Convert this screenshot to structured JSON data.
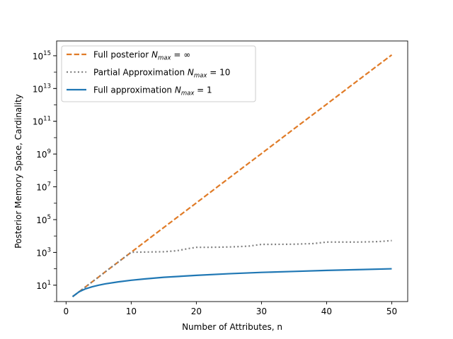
{
  "chart_data": {
    "type": "line",
    "title": "",
    "xlabel": "Number of Attributes, n",
    "ylabel": "Posterior Memory Space, Cardinality",
    "xlim": [
      -1.45,
      52.45
    ],
    "ylim_log10": [
      0.0,
      15.9
    ],
    "yscale": "log",
    "x_ticks": [
      0,
      10,
      20,
      30,
      40,
      50
    ],
    "y_ticks": [
      {
        "exp": 1,
        "base": "10",
        "sup": "1"
      },
      {
        "exp": 3,
        "base": "10",
        "sup": "3"
      },
      {
        "exp": 5,
        "base": "10",
        "sup": "5"
      },
      {
        "exp": 7,
        "base": "10",
        "sup": "7"
      },
      {
        "exp": 9,
        "base": "10",
        "sup": "9"
      },
      {
        "exp": 11,
        "base": "10",
        "sup": "11"
      },
      {
        "exp": 13,
        "base": "10",
        "sup": "13"
      },
      {
        "exp": 15,
        "base": "10",
        "sup": "15"
      }
    ],
    "grid": false,
    "legend_position": "top-left",
    "series": [
      {
        "name": "Full posterior N_max = ∞",
        "legend": {
          "main": "Full posterior ",
          "sym": "N",
          "sub": "max",
          "eq": " = ∞"
        },
        "color": "#e07b27",
        "dash": "dashed",
        "x": [
          1,
          2,
          3,
          4,
          5,
          6,
          7,
          8,
          9,
          10,
          15,
          20,
          25,
          30,
          35,
          40,
          45,
          50
        ],
        "y_log10": [
          0.3,
          0.6,
          0.9,
          1.2,
          1.5,
          1.81,
          2.11,
          2.41,
          2.71,
          3.01,
          4.52,
          6.02,
          7.53,
          9.03,
          10.54,
          12.04,
          13.55,
          15.05
        ]
      },
      {
        "name": "Partial Approximation N_max = 10",
        "legend": {
          "main": "Partial Approximation ",
          "sym": "N",
          "sub": "max",
          "eq": " = 10"
        },
        "color": "#808080",
        "dash": "dotted",
        "x": [
          1,
          2,
          3,
          4,
          5,
          6,
          7,
          8,
          9,
          10,
          12,
          15,
          17,
          19,
          20,
          22,
          25,
          28,
          30,
          32,
          35,
          38,
          40,
          42,
          45,
          48,
          50
        ],
        "y_log10": [
          0.3,
          0.6,
          0.9,
          1.2,
          1.5,
          1.81,
          2.11,
          2.41,
          2.71,
          3.01,
          3.02,
          3.04,
          3.1,
          3.25,
          3.31,
          3.31,
          3.33,
          3.38,
          3.49,
          3.49,
          3.5,
          3.54,
          3.63,
          3.63,
          3.63,
          3.66,
          3.72
        ]
      },
      {
        "name": "Full approximation N_max = 1",
        "legend": {
          "main": "Full approximation ",
          "sym": "N",
          "sub": "max",
          "eq": " = 1"
        },
        "color": "#1f77b4",
        "dash": "solid",
        "x": [
          1,
          2,
          3,
          4,
          5,
          6,
          8,
          10,
          12,
          15,
          20,
          25,
          30,
          35,
          40,
          45,
          50
        ],
        "y_log10": [
          0.3,
          0.6,
          0.78,
          0.9,
          1.0,
          1.08,
          1.2,
          1.3,
          1.38,
          1.48,
          1.6,
          1.7,
          1.78,
          1.84,
          1.9,
          1.95,
          2.0
        ]
      }
    ]
  }
}
